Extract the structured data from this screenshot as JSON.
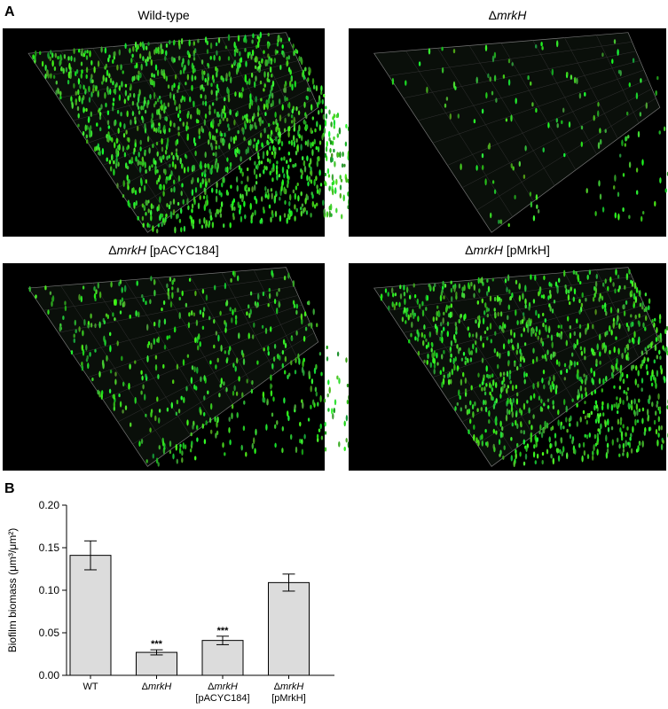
{
  "panel_a": {
    "label": "A",
    "italic": "mrkH",
    "images": [
      {
        "title": "Wild-type"
      },
      {
        "title": "ΔmrkH"
      },
      {
        "title": "ΔmrkH [pACYC184]"
      },
      {
        "title": "ΔmrkH [pMrkH]"
      }
    ]
  },
  "chart_data": {
    "type": "bar",
    "panel_label": "B",
    "italic": "mrkH",
    "y_label": "Biofilm biomass (μm³/μm²)",
    "categories": [
      [
        "WT"
      ],
      [
        "ΔmrkH"
      ],
      [
        "ΔmrkH",
        "[pACYC184]"
      ],
      [
        "ΔmrkH",
        "[pMrkH]"
      ]
    ],
    "values": [
      0.141,
      0.027,
      0.041,
      0.109
    ],
    "errors": [
      0.017,
      0.003,
      0.005,
      0.01
    ],
    "annotations": [
      null,
      "***",
      "***",
      null
    ],
    "color": "#dcdcdc",
    "ylim": [
      0,
      0.2
    ],
    "yticks": [
      {
        "value": 0,
        "label": "0.00"
      },
      {
        "value": 0.05,
        "label": "0.05"
      },
      {
        "value": 0.1,
        "label": "0.10"
      },
      {
        "value": 0.15,
        "label": "0.15"
      },
      {
        "value": 0.2,
        "label": "0.20"
      }
    ]
  }
}
